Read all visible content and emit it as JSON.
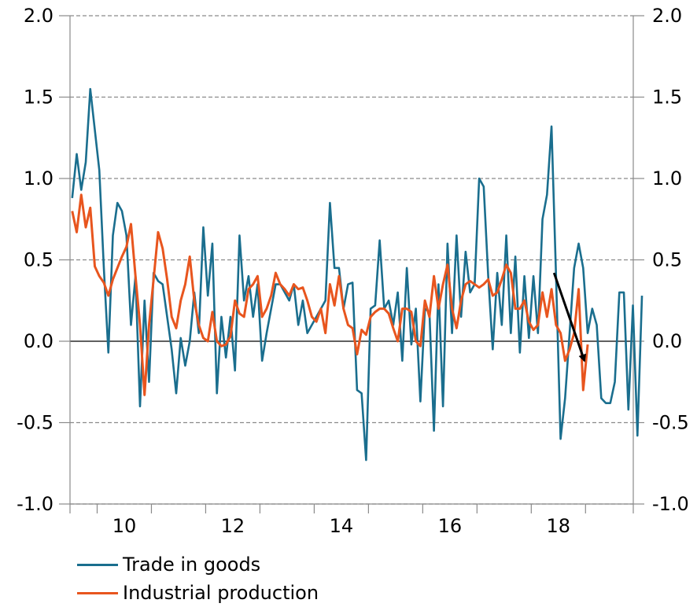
{
  "chart_data": {
    "type": "line",
    "title": "",
    "xlabel": "",
    "ylabel": "",
    "ylim": [
      -1.0,
      2.0
    ],
    "yticks": [
      -1.0,
      -0.5,
      0.0,
      0.5,
      1.0,
      1.5,
      2.0
    ],
    "ytick_labels": [
      "-1.0",
      "-0.5",
      "0.0",
      "0.5",
      "1.0",
      "1.5",
      "2.0"
    ],
    "xlim": [
      2009.5,
      2019.88
    ],
    "x_major_ticks": [
      2010,
      2011,
      2012,
      2013,
      2014,
      2015,
      2016,
      2017,
      2018,
      2019
    ],
    "x_labeled_years": [
      2010,
      2012,
      2014,
      2016,
      2018
    ],
    "x_tick_labels": [
      "10",
      "12",
      "14",
      "16",
      "18"
    ],
    "x_start": 2009.54,
    "x_step": 0.0833333,
    "grid": "horizontal-dashed",
    "legend_placement": "bottom-left",
    "series": [
      {
        "name": "Trade in goods",
        "color": "#1a6e8e",
        "values": [
          0.88,
          1.15,
          0.93,
          1.1,
          1.55,
          1.3,
          1.05,
          0.45,
          -0.07,
          0.65,
          0.85,
          0.8,
          0.65,
          0.1,
          0.4,
          -0.4,
          0.25,
          -0.25,
          0.42,
          0.37,
          0.35,
          0.15,
          -0.05,
          -0.32,
          0.02,
          -0.15,
          0.0,
          0.3,
          0.05,
          0.7,
          0.28,
          0.6,
          -0.32,
          0.15,
          -0.1,
          0.15,
          -0.18,
          0.65,
          0.25,
          0.4,
          0.15,
          0.35,
          -0.12,
          0.05,
          0.2,
          0.35,
          0.35,
          0.3,
          0.25,
          0.35,
          0.1,
          0.25,
          0.05,
          0.1,
          0.15,
          0.2,
          0.25,
          0.85,
          0.45,
          0.45,
          0.2,
          0.35,
          0.36,
          -0.3,
          -0.32,
          -0.73,
          0.2,
          0.22,
          0.62,
          0.2,
          0.25,
          0.1,
          0.3,
          -0.12,
          0.45,
          -0.02,
          0.2,
          -0.37,
          0.2,
          0.18,
          -0.55,
          0.35,
          -0.4,
          0.6,
          0.05,
          0.65,
          0.15,
          0.55,
          0.3,
          0.35,
          1.0,
          0.95,
          0.4,
          -0.05,
          0.42,
          0.1,
          0.65,
          0.05,
          0.52,
          -0.07,
          0.4,
          0.02,
          0.4,
          0.05,
          0.75,
          0.9,
          1.32,
          0.4,
          -0.6,
          -0.35,
          0.05,
          0.45,
          0.6,
          0.45,
          0.05,
          0.2,
          0.1,
          -0.35,
          -0.38,
          -0.38,
          -0.25,
          0.3,
          0.3,
          -0.42,
          0.22,
          -0.58,
          0.28
        ]
      },
      {
        "name": "Industrial production",
        "color": "#e8551e",
        "values": [
          0.8,
          0.67,
          0.9,
          0.7,
          0.82,
          0.46,
          0.4,
          0.36,
          0.28,
          0.38,
          0.45,
          0.52,
          0.58,
          0.72,
          0.4,
          0.1,
          -0.33,
          0.1,
          0.38,
          0.67,
          0.57,
          0.38,
          0.15,
          0.08,
          0.25,
          0.35,
          0.52,
          0.25,
          0.1,
          0.02,
          0.0,
          0.18,
          0.0,
          -0.03,
          -0.02,
          0.03,
          0.25,
          0.17,
          0.15,
          0.32,
          0.35,
          0.4,
          0.15,
          0.2,
          0.28,
          0.42,
          0.35,
          0.32,
          0.28,
          0.35,
          0.32,
          0.33,
          0.25,
          0.15,
          0.12,
          0.2,
          0.05,
          0.35,
          0.22,
          0.4,
          0.2,
          0.1,
          0.08,
          -0.08,
          0.07,
          0.04,
          0.15,
          0.18,
          0.2,
          0.2,
          0.17,
          0.08,
          0.0,
          0.2,
          0.2,
          0.18,
          0.0,
          -0.03,
          0.25,
          0.15,
          0.4,
          0.2,
          0.35,
          0.47,
          0.2,
          0.08,
          0.25,
          0.35,
          0.37,
          0.35,
          0.33,
          0.35,
          0.38,
          0.28,
          0.3,
          0.38,
          0.47,
          0.42,
          0.2,
          0.2,
          0.25,
          0.12,
          0.07,
          0.1,
          0.3,
          0.15,
          0.32,
          0.1,
          0.05,
          -0.12,
          -0.05,
          0.05,
          0.32,
          -0.3,
          -0.02
        ]
      }
    ],
    "annotations": [
      {
        "type": "arrow",
        "from": [
          2018.42,
          0.42
        ],
        "to": [
          2018.98,
          -0.12
        ],
        "color": "#000000"
      }
    ]
  }
}
